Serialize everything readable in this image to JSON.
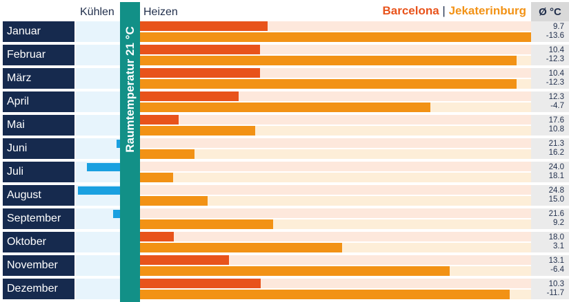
{
  "header": {
    "cooling_label": "Kühlen",
    "heating_label": "Heizen",
    "room_temp_label": "Raumtemperatur 21 °C",
    "legend_barcelona": "Barcelona",
    "legend_separator": "|",
    "legend_yekaterinburg": "Jekaterinburg",
    "avg_label": "Ø °C"
  },
  "colors": {
    "barcelona": "#e8531b",
    "yekaterinburg": "#f29215",
    "cooling": "#1aa0e0",
    "room_temp_band": "#129087",
    "month_box": "#162a4e"
  },
  "chart_data": {
    "type": "bar",
    "reference_temperature": 21,
    "heating_axis_max": 34.6,
    "categories": [
      "Januar",
      "Februar",
      "März",
      "April",
      "Mai",
      "Juni",
      "Juli",
      "August",
      "September",
      "Oktober",
      "November",
      "Dezember"
    ],
    "series": [
      {
        "name": "Barcelona",
        "values": [
          "9.7",
          "10.4",
          "10.4",
          "12.3",
          "17.6",
          "21.3",
          "24.0",
          "24.8",
          "21.6",
          "18.0",
          "13.1",
          "10.3"
        ]
      },
      {
        "name": "Jekaterinburg",
        "values": [
          "-13.6",
          "-12.3",
          "-12.3",
          "-4.7",
          "10.8",
          "16.2",
          "18.1",
          "15.0",
          "9.2",
          "3.1",
          "-6.4",
          "-11.7"
        ]
      }
    ]
  }
}
